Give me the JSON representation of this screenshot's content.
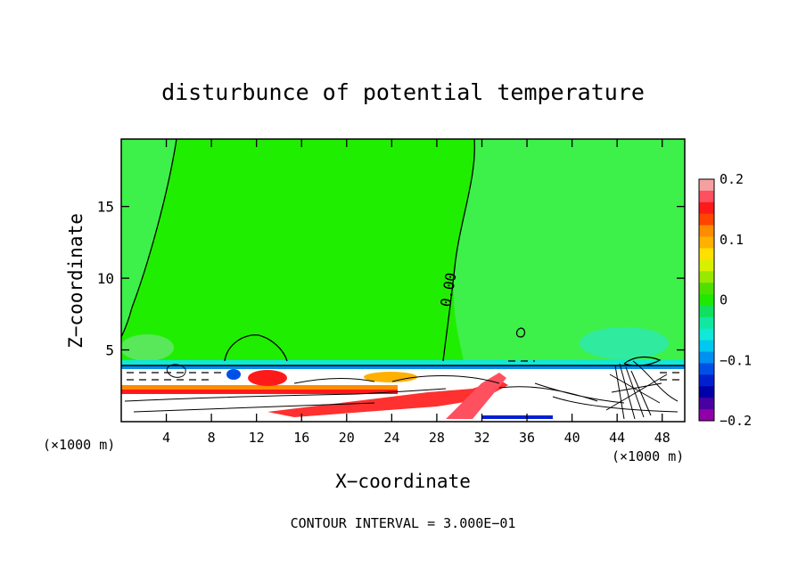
{
  "chart_data": {
    "type": "heatmap",
    "title": "disturbunce of potential temperature",
    "xlabel": "X−coordinate",
    "ylabel": "Z−coordinate",
    "xunit_left": "(×1000 m)",
    "xunit_right": "(×1000 m)",
    "xlim": [
      0,
      50
    ],
    "ylim": [
      0,
      19.7
    ],
    "xticks": [
      4,
      8,
      12,
      16,
      20,
      24,
      28,
      32,
      36,
      40,
      44,
      48
    ],
    "yticks": [
      5,
      10,
      15
    ],
    "contour_label": "0.00",
    "footer": "CONTOUR INTERVAL = 3.000E−01",
    "colorbar": {
      "range": [
        -0.2,
        0.2
      ],
      "ticks": [
        "0.2",
        "0.1",
        "0",
        "−0.1",
        "−0.2"
      ],
      "colors": [
        "#f4a0a0",
        "#ff5060",
        "#ff1a1a",
        "#ff4500",
        "#ff8c00",
        "#ffb000",
        "#ffe000",
        "#d8f000",
        "#98e800",
        "#50e000",
        "#20e800",
        "#10e060",
        "#10e8a0",
        "#10e8d8",
        "#00c8f0",
        "#0090f0",
        "#0050e8",
        "#0020d0",
        "#0000a8",
        "#4a00a0",
        "#9000a8"
      ]
    }
  }
}
